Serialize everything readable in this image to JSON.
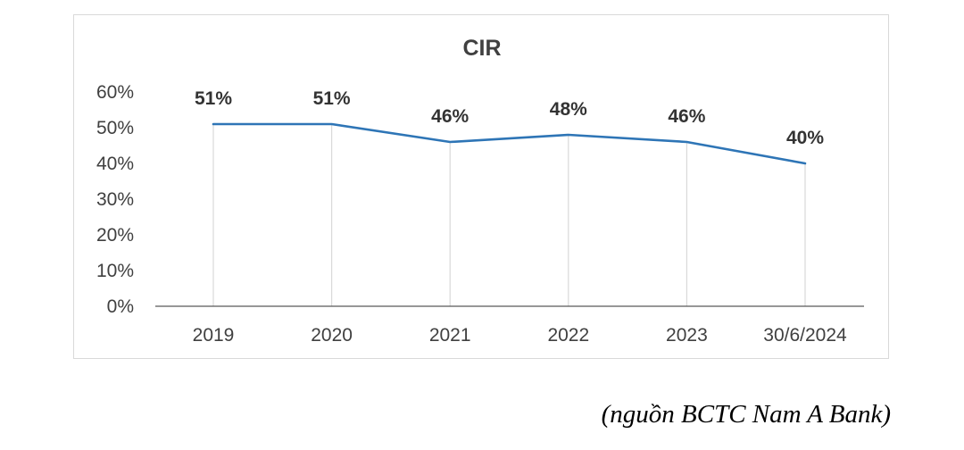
{
  "chart_data": {
    "type": "line",
    "title": "CIR",
    "categories": [
      "2019",
      "2020",
      "2021",
      "2022",
      "2023",
      "30/6/2024"
    ],
    "series": [
      {
        "values": [
          51,
          51,
          46,
          48,
          46,
          40
        ],
        "labels": [
          "51%",
          "51%",
          "46%",
          "48%",
          "46%",
          "40%"
        ],
        "color": "#2e75b6"
      }
    ],
    "yticks": [
      "0%",
      "10%",
      "20%",
      "30%",
      "40%",
      "50%",
      "60%"
    ],
    "ylim": [
      0,
      60
    ],
    "xlabel": "",
    "ylabel": "",
    "drop_lines": true,
    "legend": "none"
  },
  "source_note": "(nguồn BCTC Nam A Bank)"
}
